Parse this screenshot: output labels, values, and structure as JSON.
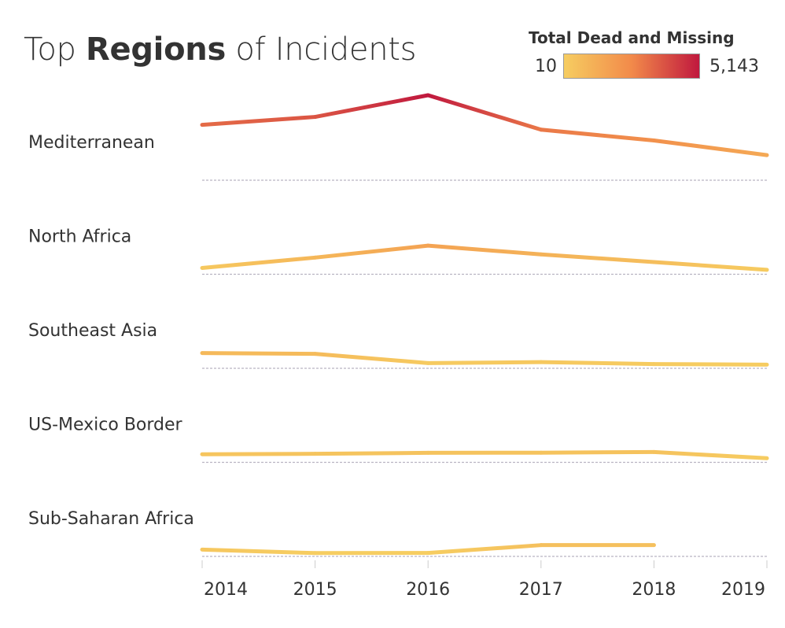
{
  "title": {
    "pre": "Top ",
    "bold": "Regions",
    "post": " of Incidents"
  },
  "legend": {
    "title": "Total Dead and Missing",
    "min_label": "10",
    "max_label": "5,143"
  },
  "colors": {
    "low": "#f6cd61",
    "mid": "#f28a4a",
    "high": "#c0183e",
    "baseline": "#b9b4c2",
    "axis": "#cccccc"
  },
  "chart_data": {
    "type": "line",
    "x": [
      2014,
      2015,
      2016,
      2017,
      2018,
      2019
    ],
    "x_tick_labels": [
      "2014",
      "2015",
      "2016",
      "2017",
      "2018",
      "2019"
    ],
    "color_scale": {
      "min": 10,
      "max": 5143
    },
    "panels": [
      {
        "name": "Mediterranean",
        "values": [
          3280,
          3780,
          5143,
          2980,
          2300,
          1380
        ]
      },
      {
        "name": "North Africa",
        "values": [
          200,
          850,
          1600,
          1050,
          570,
          80
        ]
      },
      {
        "name": "Southeast Asia",
        "values": [
          760,
          710,
          130,
          190,
          70,
          30
        ]
      },
      {
        "name": "US-Mexico Border",
        "values": [
          310,
          340,
          400,
          410,
          450,
          60
        ]
      },
      {
        "name": "Sub-Saharan Africa",
        "values": [
          230,
          10,
          20,
          510,
          510,
          null
        ]
      }
    ]
  }
}
